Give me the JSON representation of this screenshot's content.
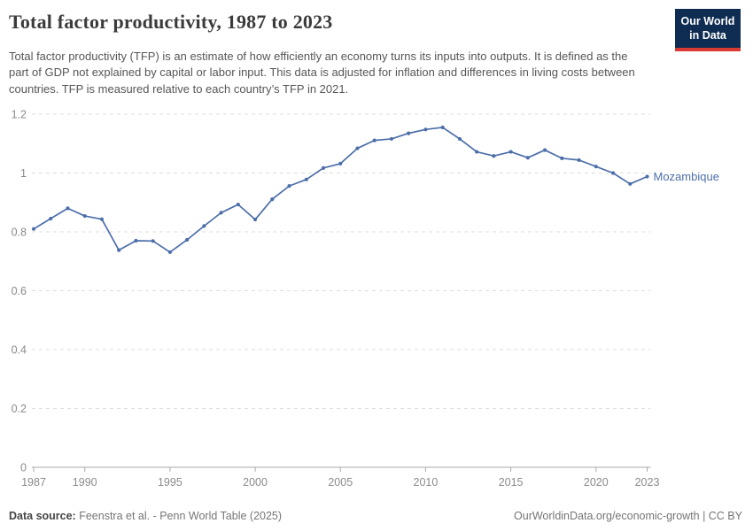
{
  "header": {
    "title": "Total factor productivity, 1987 to 2023",
    "subtitle": "Total factor productivity (TFP) is an estimate of how efficiently an economy turns its inputs into outputs. It is defined as the part of GDP not explained by capital or labor input. This data is adjusted for inflation and differences in living costs between countries. TFP is measured relative to each country’s TFP in 2021.",
    "logo": {
      "line1": "Our World",
      "line2": "in Data",
      "bg_color": "#0f2d52",
      "stripe_color": "#d93a34"
    }
  },
  "chart_data": {
    "type": "line",
    "title": "Total factor productivity, 1987 to 2023",
    "xlabel": "",
    "ylabel": "",
    "xlim": [
      1987,
      2023
    ],
    "ylim": [
      0,
      1.2
    ],
    "grid": "horizontal-dashed",
    "legend_position": "end-of-line-label",
    "xticks": [
      1987,
      1990,
      1995,
      2000,
      2005,
      2010,
      2015,
      2020,
      2023
    ],
    "yticks": [
      0,
      0.2,
      0.4,
      0.6,
      0.8,
      1,
      1.2
    ],
    "x": [
      1987,
      1988,
      1989,
      1990,
      1991,
      1992,
      1993,
      1994,
      1995,
      1996,
      1997,
      1998,
      1999,
      2000,
      2001,
      2002,
      2003,
      2004,
      2005,
      2006,
      2007,
      2008,
      2009,
      2010,
      2011,
      2012,
      2013,
      2014,
      2015,
      2016,
      2017,
      2018,
      2019,
      2020,
      2021,
      2022,
      2023
    ],
    "series": [
      {
        "name": "Mozambique",
        "color": "#4c6ea9",
        "values": [
          0.81,
          0.845,
          0.88,
          0.854,
          0.843,
          0.738,
          0.77,
          0.769,
          0.731,
          0.773,
          0.82,
          0.865,
          0.893,
          0.842,
          0.911,
          0.956,
          0.978,
          1.017,
          1.032,
          1.084,
          1.111,
          1.116,
          1.135,
          1.148,
          1.155,
          1.116,
          1.072,
          1.058,
          1.072,
          1.052,
          1.078,
          1.05,
          1.044,
          1.022,
          1.0,
          0.963,
          0.988
        ]
      }
    ],
    "axis_colors": {
      "tick_label": "#8a8a8a",
      "gridline": "#dcdcdc",
      "axis_line": "#a8a8a8"
    }
  },
  "footer": {
    "source_label": "Data source:",
    "source_value": " Feenstra et al. - Penn World Table (2025)",
    "right_text": "OurWorldinData.org/economic-growth | CC BY"
  }
}
